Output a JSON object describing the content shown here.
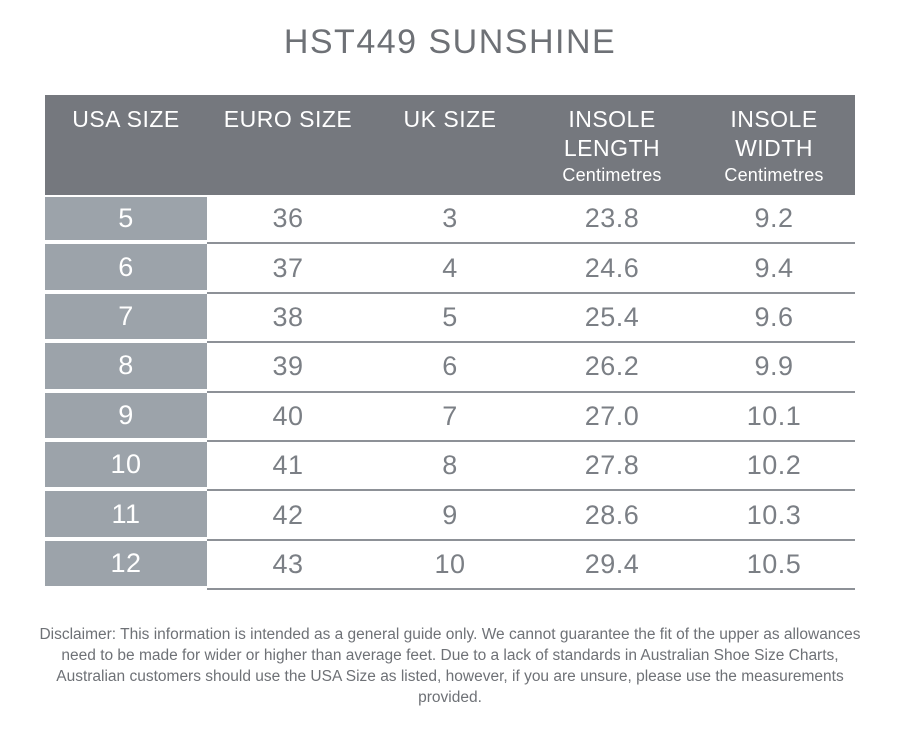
{
  "title": "HST449 SUNSHINE",
  "colors": {
    "header_bg": "#75787E",
    "first_col_bg": "#9CA3AA",
    "header_text": "#FFFFFF",
    "cell_text": "#7B7F85",
    "row_line": "#8D9197",
    "title_text": "#6E7176",
    "disclaimer_text": "#6E7176",
    "page_bg": "#FFFFFF"
  },
  "table": {
    "columns": [
      {
        "line1": "USA SIZE"
      },
      {
        "line1": "EURO SIZE"
      },
      {
        "line1": "UK SIZE"
      },
      {
        "line1": "INSOLE",
        "line2": "LENGTH",
        "line3": "Centimetres"
      },
      {
        "line1": "INSOLE",
        "line2": "WIDTH",
        "line3": "Centimetres"
      }
    ],
    "rows": [
      [
        "5",
        "36",
        "3",
        "23.8",
        "9.2"
      ],
      [
        "6",
        "37",
        "4",
        "24.6",
        "9.4"
      ],
      [
        "7",
        "38",
        "5",
        "25.4",
        "9.6"
      ],
      [
        "8",
        "39",
        "6",
        "26.2",
        "9.9"
      ],
      [
        "9",
        "40",
        "7",
        "27.0",
        "10.1"
      ],
      [
        "10",
        "41",
        "8",
        "27.8",
        "10.2"
      ],
      [
        "11",
        "42",
        "9",
        "28.6",
        "10.3"
      ],
      [
        "12",
        "43",
        "10",
        "29.4",
        "10.5"
      ]
    ]
  },
  "disclaimer": "Disclaimer: This information is intended as a general guide only. We cannot guarantee the fit of the upper as allowances need to be made for wider or higher than average feet. Due to a lack of standards in Australian Shoe Size Charts, Australian customers should use the USA Size as listed, however, if you are unsure, please use the measurements provided.",
  "chart_data": {
    "type": "table",
    "title": "HST449 SUNSHINE",
    "columns": [
      "USA SIZE",
      "EURO SIZE",
      "UK SIZE",
      "INSOLE LENGTH Centimetres",
      "INSOLE WIDTH Centimetres"
    ],
    "rows": [
      [
        "5",
        "36",
        "3",
        "23.8",
        "9.2"
      ],
      [
        "6",
        "37",
        "4",
        "24.6",
        "9.4"
      ],
      [
        "7",
        "38",
        "5",
        "25.4",
        "9.6"
      ],
      [
        "8",
        "39",
        "6",
        "26.2",
        "9.9"
      ],
      [
        "9",
        "40",
        "7",
        "27.0",
        "10.1"
      ],
      [
        "10",
        "41",
        "8",
        "27.8",
        "10.2"
      ],
      [
        "11",
        "42",
        "9",
        "28.6",
        "10.3"
      ],
      [
        "12",
        "43",
        "10",
        "29.4",
        "10.5"
      ]
    ]
  }
}
